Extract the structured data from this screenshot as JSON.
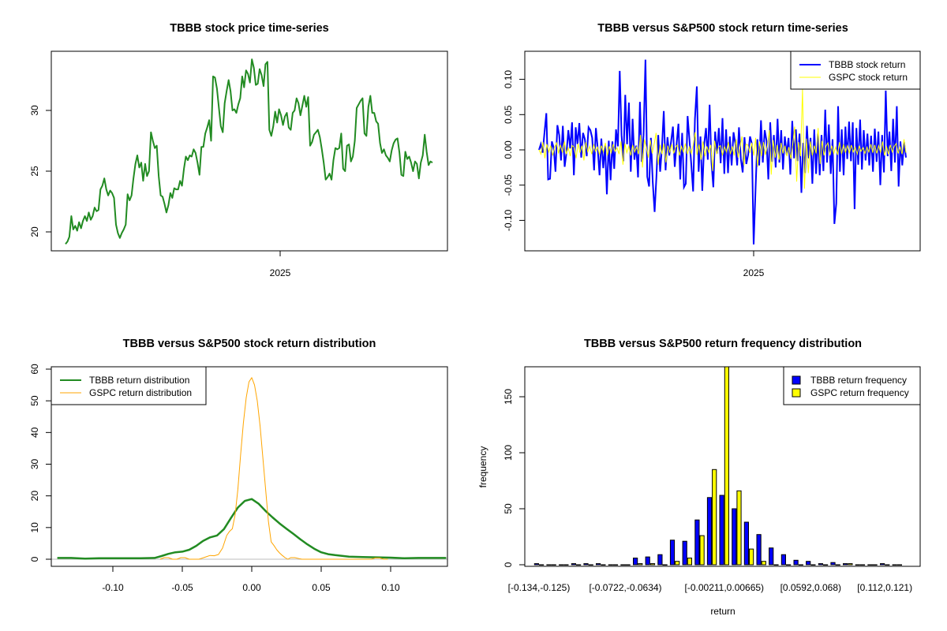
{
  "colors": {
    "price": "#228B22",
    "tbbb_return": "#0000FF",
    "gspc_return": "#FFFF00",
    "tbbb_density": "#228B22",
    "gspc_density": "#FFA500",
    "zero_line": "#BEBEBE",
    "tbbb_bar": "#0000FF",
    "gspc_bar": "#FFFF00"
  },
  "chart_data": [
    {
      "type": "line",
      "title": "TBBB stock price time-series",
      "xlabel": "",
      "ylabel": "",
      "x_ticks": [
        "2025"
      ],
      "x_tick_fraction": 0.56,
      "y_ticks": [
        20,
        25,
        30
      ],
      "y_tick_labels": [
        "20",
        "25",
        "30"
      ],
      "ylim": [
        18.6,
        35.0
      ],
      "series": [
        {
          "name": "TBBB price",
          "color": "#228B22",
          "values": [
            19.0,
            19.2,
            19.6,
            21.3,
            20.2,
            20.5,
            20.1,
            20.8,
            20.3,
            20.9,
            21.3,
            20.9,
            21.6,
            21.0,
            21.3,
            22.0,
            21.7,
            21.8,
            23.5,
            23.8,
            24.4,
            23.5,
            23.0,
            23.4,
            23.2,
            22.8,
            20.6,
            19.9,
            19.5,
            19.9,
            20.2,
            20.6,
            23.1,
            22.6,
            23.0,
            24.4,
            25.6,
            26.3,
            25.3,
            25.7,
            24.2,
            25.6,
            24.6,
            25.0,
            28.2,
            27.5,
            26.9,
            27.1,
            24.6,
            23.0,
            22.9,
            22.3,
            21.6,
            22.2,
            23.2,
            22.8,
            23.6,
            23.5,
            23.5,
            24.2,
            23.8,
            25.2,
            26.2,
            25.9,
            26.3,
            26.2,
            26.8,
            26.5,
            25.7,
            24.7,
            27.0,
            27.0,
            28.1,
            28.6,
            29.2,
            27.5,
            32.8,
            32.7,
            31.8,
            30.2,
            28.7,
            28.2,
            30.6,
            31.6,
            32.5,
            31.6,
            30.0,
            30.1,
            29.8,
            30.5,
            31.0,
            32.8,
            31.9,
            33.3,
            33.0,
            32.3,
            34.2,
            33.5,
            32.1,
            32.2,
            33.4,
            32.9,
            32.0,
            33.8,
            34.0,
            28.4,
            27.9,
            28.7,
            29.9,
            29.0,
            30.1,
            29.6,
            28.8,
            29.5,
            29.8,
            28.6,
            28.4,
            29.8,
            30.0,
            31.0,
            30.6,
            29.6,
            30.4,
            31.2,
            30.3,
            31.1,
            27.1,
            27.4,
            28.0,
            28.2,
            28.4,
            27.8,
            26.8,
            25.7,
            24.3,
            24.5,
            24.8,
            24.3,
            25.9,
            26.9,
            26.8,
            26.9,
            28.1,
            25.2,
            25.0,
            27.1,
            27.2,
            25.8,
            26.2,
            27.5,
            30.2,
            30.5,
            30.8,
            31.0,
            28.1,
            27.9,
            30.3,
            31.2,
            29.8,
            29.8,
            29.1,
            28.9,
            27.3,
            26.5,
            26.8,
            26.3,
            26.1,
            25.8,
            26.7,
            27.3,
            27.6,
            27.7,
            26.5,
            24.7,
            24.6,
            26.6,
            26.0,
            26.2,
            25.7,
            25.0,
            25.8,
            25.6,
            24.4,
            25.7,
            26.3,
            28.0,
            26.6,
            25.5,
            25.8,
            25.7
          ]
        }
      ]
    },
    {
      "type": "line",
      "title": "TBBB versus S&P500 stock return time-series",
      "xlabel": "",
      "ylabel": "",
      "x_ticks": [
        "2025"
      ],
      "x_tick_fraction": 0.56,
      "y_ticks": [
        -0.1,
        -0.05,
        0.0,
        0.05,
        0.1
      ],
      "y_tick_labels": [
        "-0.10",
        "-0.05",
        "0.00",
        "0.05",
        "0.10"
      ],
      "ylim": [
        -0.142,
        0.139
      ],
      "legend_position": "top-right",
      "series": [
        {
          "name": "TBBB stock return",
          "color": "#0000FF",
          "values": [
            0.0,
            0.008,
            -0.004,
            0.025,
            0.052,
            -0.042,
            -0.041,
            0.012,
            0.003,
            -0.031,
            0.035,
            0.021,
            -0.015,
            0.034,
            -0.024,
            -0.003,
            0.028,
            0.002,
            0.039,
            -0.036,
            0.032,
            0.008,
            0.038,
            -0.011,
            0.024,
            0.015,
            -0.009,
            0.032,
            0.028,
            0.017,
            -0.029,
            0.031,
            0.002,
            -0.036,
            0.016,
            -0.026,
            0.006,
            -0.063,
            0.013,
            -0.043,
            0.012,
            -0.027,
            0.029,
            0.005,
            0.112,
            0.021,
            -0.016,
            0.078,
            0.008,
            0.067,
            -0.031,
            0.044,
            -0.014,
            0.006,
            -0.039,
            0.068,
            -0.017,
            0.021,
            0.128,
            -0.038,
            -0.052,
            0.017,
            -0.045,
            -0.088,
            -0.038,
            0.021,
            -0.031,
            0.003,
            0.055,
            -0.029,
            0.018,
            -0.008,
            0.012,
            0.033,
            -0.024,
            0.009,
            0.037,
            -0.042,
            0.024,
            -0.053,
            -0.048,
            0.048,
            0.015,
            -0.021,
            -0.059,
            0.044,
            0.09,
            -0.031,
            0.019,
            -0.058,
            0.008,
            0.031,
            -0.014,
            0.064,
            -0.017,
            -0.053,
            0.026,
            -0.005,
            0.031,
            -0.019,
            0.045,
            -0.034,
            0.029,
            -0.033,
            0.019,
            -0.022,
            0.025,
            0.009,
            -0.022,
            0.032,
            -0.013,
            -0.032,
            0.018,
            -0.02,
            -0.007,
            0.019,
            0.009,
            -0.134,
            -0.056,
            0.015,
            -0.022,
            0.042,
            -0.018,
            0.028,
            0.013,
            -0.042,
            0.039,
            -0.017,
            0.021,
            -0.025,
            0.044,
            -0.018,
            0.028,
            -0.028,
            0.019,
            -0.007,
            0.017,
            -0.035,
            0.041,
            -0.012,
            0.029,
            -0.016,
            0.023,
            -0.061,
            0.01,
            -0.033,
            0.034,
            -0.012,
            0.017,
            -0.048,
            0.029,
            -0.034,
            0.023,
            -0.036,
            0.021,
            -0.03,
            0.057,
            -0.018,
            0.036,
            -0.034,
            0.015,
            -0.105,
            -0.076,
            0.062,
            -0.031,
            0.029,
            -0.036,
            0.033,
            -0.013,
            0.04,
            -0.016,
            0.039,
            -0.084,
            0.031,
            -0.021,
            0.043,
            -0.028,
            0.028,
            -0.015,
            0.023,
            -0.022,
            0.02,
            -0.031,
            0.03,
            -0.017,
            0.026,
            -0.05,
            0.021,
            -0.032,
            0.084,
            -0.009,
            0.026,
            -0.03,
            0.044,
            -0.018,
            0.062,
            -0.052,
            0.012,
            -0.022,
            0.011,
            -0.011
          ]
        },
        {
          "name": "GSPC stock return",
          "color": "#FFFF00",
          "values": [
            0.0,
            -0.006,
            0.011,
            -0.012,
            0.008,
            -0.003,
            0.006,
            -0.008,
            0.004,
            0.01,
            -0.005,
            0.007,
            -0.004,
            0.012,
            -0.006,
            0.003,
            -0.009,
            0.006,
            0.004,
            -0.012,
            0.009,
            -0.004,
            0.006,
            -0.015,
            0.011,
            -0.003,
            0.005,
            -0.006,
            0.008,
            -0.002,
            0.004,
            -0.007,
            0.006,
            -0.003,
            0.01,
            -0.008,
            0.005,
            -0.004,
            0.008,
            -0.002,
            0.003,
            -0.006,
            0.012,
            -0.021,
            0.009,
            -0.004,
            0.005,
            -0.008,
            0.007,
            -0.003,
            0.004,
            -0.006,
            0.021,
            -0.025,
            0.015,
            0.004,
            -0.011,
            0.014,
            -0.005,
            0.008,
            0.024,
            -0.021,
            0.007,
            -0.006,
            0.009,
            -0.018,
            0.006,
            -0.003,
            0.008,
            -0.005,
            0.004,
            0.007,
            -0.008,
            0.005,
            -0.003,
            0.009,
            -0.006,
            0.004,
            -0.005,
            0.007,
            0.025,
            -0.007,
            0.008,
            -0.014,
            0.012,
            -0.009,
            0.005,
            -0.004,
            0.007,
            -0.03,
            0.013,
            -0.006,
            0.004,
            0.006,
            -0.008,
            0.005,
            -0.003,
            0.011,
            -0.006,
            0.005,
            -0.008,
            0.015,
            -0.011,
            0.005,
            0.019,
            -0.022,
            0.008,
            0.007,
            -0.004,
            0.01,
            -0.008,
            0.017,
            -0.024,
            0.012,
            -0.009,
            0.011,
            -0.007,
            0.006,
            0.028,
            -0.035,
            0.014,
            -0.011,
            0.007,
            -0.014,
            0.01,
            -0.005,
            0.006,
            -0.009,
            0.004,
            -0.013,
            0.008,
            0.033,
            -0.045,
            0.011,
            -0.009,
            0.086,
            -0.055,
            0.016,
            -0.033,
            0.012,
            -0.008,
            0.006,
            -0.005,
            0.031,
            -0.02,
            0.013,
            -0.008,
            0.005,
            0.01,
            -0.008,
            0.006,
            -0.005,
            0.004,
            -0.007,
            0.011,
            -0.006,
            0.008,
            -0.004,
            0.006,
            -0.005,
            0.007,
            -0.003,
            0.004,
            -0.006,
            0.005,
            -0.002,
            0.003,
            -0.005,
            0.004,
            -0.003,
            0.008,
            -0.004,
            0.007,
            -0.005,
            0.006,
            -0.004,
            0.012,
            -0.008,
            0.005,
            -0.006,
            0.007,
            -0.003,
            0.005,
            0.009,
            -0.005,
            0.004,
            -0.006,
            0.015,
            -0.004
          ]
        }
      ]
    },
    {
      "type": "line",
      "title": "TBBB versus S&P500 stock return distribution",
      "xlabel": "",
      "ylabel": "",
      "xlim": [
        -0.14,
        0.14
      ],
      "ylim": [
        -2.4,
        61.0
      ],
      "x_ticks": [
        -0.1,
        -0.05,
        0.0,
        0.05,
        0.1
      ],
      "x_tick_labels": [
        "-0.10",
        "-0.05",
        "0.00",
        "0.05",
        "0.10"
      ],
      "y_ticks": [
        0,
        10,
        20,
        30,
        40,
        50,
        60
      ],
      "y_tick_labels": [
        "0",
        "10",
        "20",
        "30",
        "40",
        "50",
        "60"
      ],
      "legend_position": "top-left",
      "series": [
        {
          "name": "TBBB return distribution",
          "color": "#228B22",
          "x": [
            -0.14,
            -0.13,
            -0.12,
            -0.11,
            -0.1,
            -0.09,
            -0.08,
            -0.07,
            -0.065,
            -0.06,
            -0.055,
            -0.05,
            -0.045,
            -0.04,
            -0.035,
            -0.03,
            -0.025,
            -0.02,
            -0.015,
            -0.01,
            -0.005,
            0.0,
            0.005,
            0.01,
            0.015,
            0.02,
            0.025,
            0.03,
            0.035,
            0.04,
            0.045,
            0.05,
            0.055,
            0.06,
            0.07,
            0.08,
            0.09,
            0.1,
            0.11,
            0.12,
            0.13,
            0.14
          ],
          "y": [
            0.4,
            0.4,
            0.2,
            0.3,
            0.3,
            0.3,
            0.3,
            0.4,
            1.0,
            1.7,
            2.2,
            2.4,
            3.0,
            4.2,
            5.8,
            6.9,
            7.5,
            9.5,
            13.0,
            16.3,
            18.4,
            19.0,
            17.5,
            15.2,
            13.2,
            11.3,
            9.6,
            8.0,
            6.3,
            4.7,
            3.3,
            2.2,
            1.6,
            1.3,
            0.8,
            0.7,
            0.6,
            0.5,
            0.3,
            0.4,
            0.4,
            0.4
          ]
        },
        {
          "name": "GSPC return distribution",
          "color": "#FFA500",
          "x": [
            -0.066,
            -0.063,
            -0.06,
            -0.057,
            -0.054,
            -0.051,
            -0.048,
            -0.045,
            -0.042,
            -0.038,
            -0.034,
            -0.03,
            -0.027,
            -0.024,
            -0.021,
            -0.018,
            -0.016,
            -0.014,
            -0.012,
            -0.01,
            -0.008,
            -0.006,
            -0.004,
            -0.002,
            0.0,
            0.002,
            0.004,
            0.006,
            0.008,
            0.01,
            0.012,
            0.014,
            0.016,
            0.018,
            0.02,
            0.022,
            0.024,
            0.026,
            0.028,
            0.031,
            0.034,
            0.036,
            0.04,
            0.086,
            0.089,
            0.092,
            0.095,
            0.098
          ],
          "y": [
            0.0,
            0.5,
            0.5,
            0.0,
            0.0,
            0.5,
            0.5,
            0.0,
            0.0,
            0.0,
            0.6,
            1.2,
            1.1,
            1.5,
            3.5,
            7.5,
            8.8,
            9.6,
            14.0,
            22.0,
            33.0,
            43.0,
            51.0,
            56.0,
            57.3,
            55.0,
            50.0,
            42.0,
            32.0,
            22.0,
            12.0,
            5.5,
            4.3,
            3.0,
            2.0,
            1.2,
            0.5,
            0.0,
            0.5,
            0.5,
            0.2,
            0.0,
            0.0,
            0.0,
            0.4,
            0.4,
            0.0,
            0.0
          ]
        }
      ]
    },
    {
      "type": "bar",
      "title": "TBBB versus S&P500 return frequency distribution",
      "xlabel": "return",
      "ylabel": "frequency",
      "ylim": [
        -3,
        178
      ],
      "y_ticks": [
        0,
        50,
        100,
        150
      ],
      "y_tick_labels": [
        "0",
        "50",
        "100",
        "150"
      ],
      "categories_count": 30,
      "category_labels": [
        {
          "index": 0,
          "label": "[-0.134,-0.125)"
        },
        {
          "index": 7,
          "label": "[-0.0722,-0.0634)"
        },
        {
          "index": 15,
          "label": "[-0.00211,0.00665)"
        },
        {
          "index": 22,
          "label": "[0.0592,0.068)"
        },
        {
          "index": 28,
          "label": "[0.112,0.121)"
        }
      ],
      "legend_position": "top-right",
      "series": [
        {
          "name": "TBBB return frequency",
          "color": "#0000FF",
          "values": [
            1,
            0,
            0,
            1,
            1,
            1,
            0,
            0,
            6,
            7,
            9,
            22,
            21,
            40,
            60,
            62,
            50,
            38,
            27,
            15,
            9,
            4,
            3,
            1,
            2,
            1,
            0,
            0,
            1,
            0
          ]
        },
        {
          "name": "GSPC return frequency",
          "color": "#FFFF00",
          "values": [
            0,
            0,
            0,
            0,
            0,
            0,
            0,
            0,
            1,
            1,
            0,
            3,
            6,
            26,
            85,
            178,
            66,
            14,
            3,
            0,
            0,
            0,
            0,
            0,
            0,
            1,
            0,
            0,
            0,
            0
          ]
        }
      ]
    }
  ]
}
